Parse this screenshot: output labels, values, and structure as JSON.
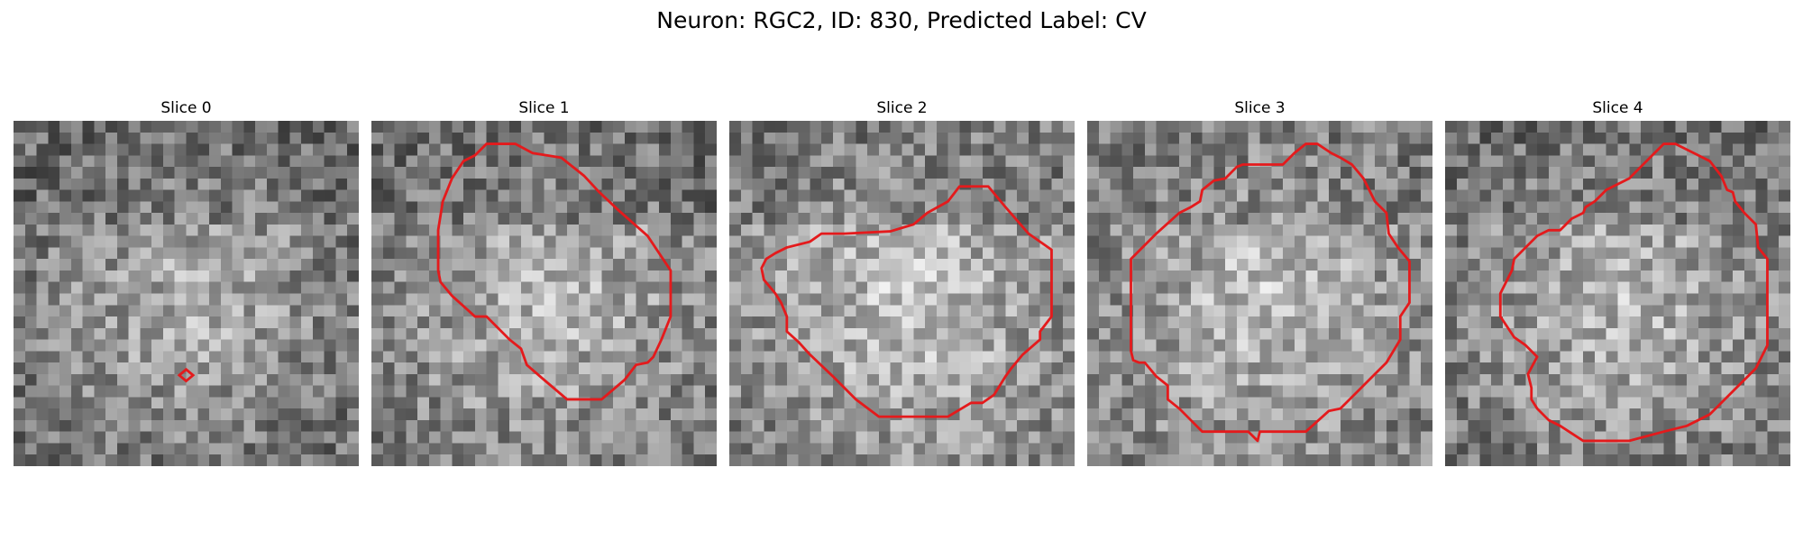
{
  "figure": {
    "title": "Neuron: RGC2, ID: 830, Predicted Label: CV"
  },
  "colors": {
    "contour": "#e41a1c",
    "background": "#ffffff"
  },
  "panels": [
    {
      "title": "Slice 0",
      "seed": 11,
      "brightness": {
        "center": 0.7,
        "top": 0.38
      },
      "contour_kind": "marker"
    },
    {
      "title": "Slice 1",
      "seed": 23,
      "brightness": {
        "center": 0.74,
        "top": 0.35
      },
      "contour_kind": "outline"
    },
    {
      "title": "Slice 2",
      "seed": 37,
      "brightness": {
        "center": 0.78,
        "top": 0.4
      },
      "contour_kind": "outline"
    },
    {
      "title": "Slice 3",
      "seed": 51,
      "brightness": {
        "center": 0.76,
        "top": 0.45
      },
      "contour_kind": "outline"
    },
    {
      "title": "Slice 4",
      "seed": 67,
      "brightness": {
        "center": 0.74,
        "top": 0.38
      },
      "contour_kind": "outline"
    }
  ]
}
